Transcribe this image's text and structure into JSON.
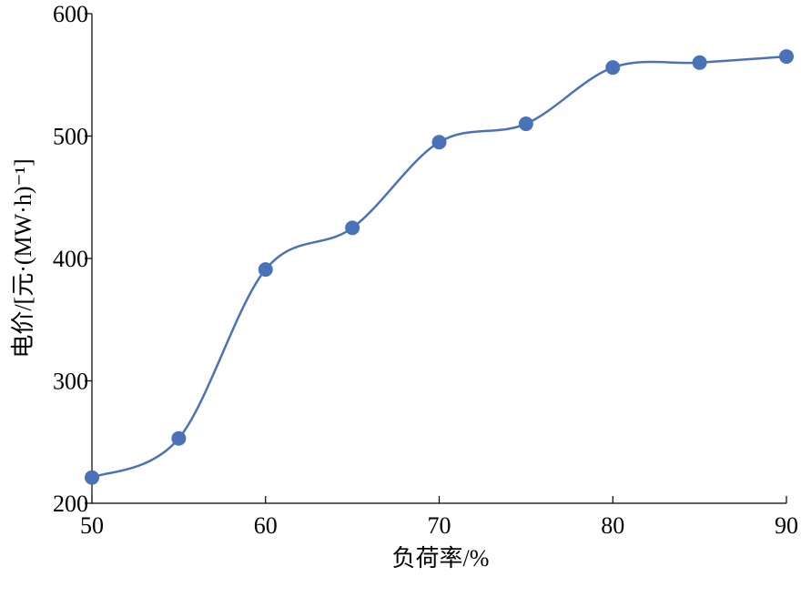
{
  "chart_data": {
    "type": "line",
    "x_label": "负荷率/%",
    "y_label": "电价/[元·(MW·h)⁻¹]",
    "x": [
      50,
      55,
      60,
      65,
      70,
      75,
      80,
      85,
      90
    ],
    "series": [
      {
        "color": "#4a72b8",
        "values": [
          221,
          253,
          391,
          425,
          495,
          510,
          556,
          560,
          565
        ]
      }
    ],
    "xlim": [
      50,
      90
    ],
    "xticks": [
      50,
      60,
      70,
      80,
      90
    ],
    "ylim": [
      200,
      600
    ],
    "yticks": [
      200,
      300,
      400,
      500,
      600
    ],
    "smooth": true,
    "markers": true
  }
}
